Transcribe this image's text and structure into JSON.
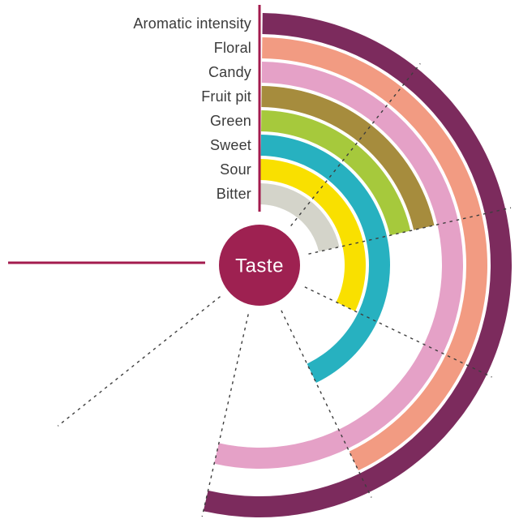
{
  "chart_data": {
    "type": "bar",
    "subtype": "radial-bar",
    "title": "",
    "center_label": "Taste",
    "categories": [
      "Aromatic intensity",
      "Floral",
      "Candy",
      "Fruit pit",
      "Green",
      "Sweet",
      "Sour",
      "Bitter"
    ],
    "values": [
      5,
      4,
      5,
      2,
      2,
      4,
      3,
      2
    ],
    "series": [
      {
        "name": "Aromatic intensity",
        "value": 5,
        "color": "#7c2b5d"
      },
      {
        "name": "Floral",
        "value": 4,
        "color": "#f29b82"
      },
      {
        "name": "Candy",
        "value": 5,
        "color": "#e5a1c7"
      },
      {
        "name": "Fruit pit",
        "value": 2,
        "color": "#a68c3d"
      },
      {
        "name": "Green",
        "value": 2,
        "color": "#a6c93c"
      },
      {
        "name": "Sweet",
        "value": 4,
        "color": "#27b1c0"
      },
      {
        "name": "Sour",
        "value": 3,
        "color": "#f9e000"
      },
      {
        "name": "Bitter",
        "value": 2,
        "color": "#d4d4ca"
      }
    ],
    "scale": {
      "min": 0,
      "max": 7,
      "start_angle_deg": 0,
      "end_angle_deg": 270,
      "gridline_units": [
        1,
        2,
        3,
        4,
        5,
        6
      ],
      "grid_on": true
    },
    "colors": {
      "center_circle": "#9e2151",
      "center_text": "#ffffff",
      "axis_line": "#a31b4e",
      "gridline": "#3e3e3e",
      "category_label": "#3b3b3b",
      "background": "#ffffff"
    },
    "legend_position": "left-column-outside-rings",
    "xlabel": "",
    "ylabel": ""
  }
}
